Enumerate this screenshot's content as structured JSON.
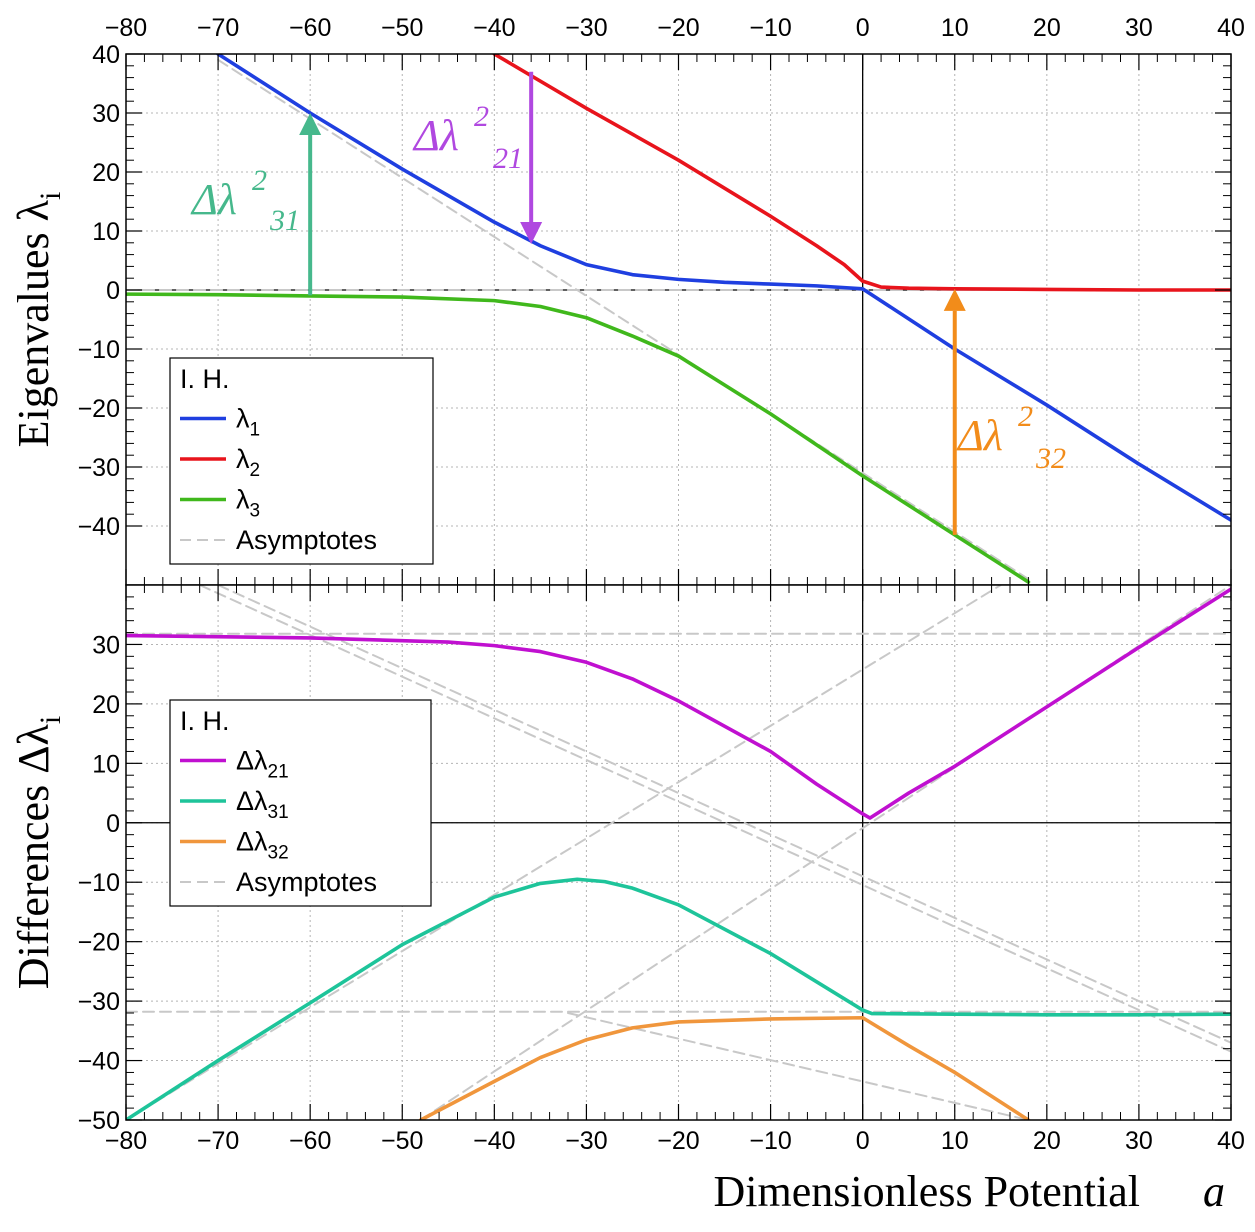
{
  "chart_data": [
    {
      "type": "line",
      "panel": "top",
      "ylabel": "Eigenvalues λ",
      "ylabel_sub": "i",
      "xlim": [
        -80,
        40
      ],
      "ylim": [
        -50,
        40
      ],
      "x_ticks": [
        -80,
        -70,
        -60,
        -50,
        -40,
        -30,
        -20,
        -10,
        0,
        10,
        20,
        30,
        40
      ],
      "y_ticks": [
        -40,
        -30,
        -20,
        -10,
        0,
        10,
        20,
        30,
        40
      ],
      "grid": true,
      "legend_position": "bottom-left",
      "legend": {
        "title": "I. H.",
        "entries": [
          {
            "id": "l1",
            "base": "λ",
            "sub": "1"
          },
          {
            "id": "l2",
            "base": "λ",
            "sub": "2"
          },
          {
            "id": "l3",
            "base": "λ",
            "sub": "3"
          },
          {
            "id": "asym",
            "base": "Asymptotes",
            "sub": ""
          }
        ]
      },
      "series": [
        {
          "id": "l1",
          "color": "#1f3fe0",
          "x": [
            -70,
            -60,
            -50,
            -40,
            -35,
            -30,
            -25,
            -20,
            -15,
            -10,
            -5,
            0,
            10,
            20,
            30,
            40
          ],
          "values": [
            40,
            30,
            20.5,
            11.5,
            7.5,
            4.3,
            2.6,
            1.8,
            1.3,
            1.0,
            0.7,
            0.2,
            -10,
            -19.5,
            -29.5,
            -39
          ]
        },
        {
          "id": "l2",
          "color": "#e8141c",
          "x": [
            -40,
            -30,
            -20,
            -10,
            -5,
            -2,
            0,
            2,
            5,
            10,
            20,
            30,
            40
          ],
          "values": [
            40,
            30.8,
            22,
            12.5,
            7.5,
            4.3,
            1.5,
            0.5,
            0.3,
            0.2,
            0.1,
            0,
            0
          ]
        },
        {
          "id": "l3",
          "color": "#40b81c",
          "x": [
            -80,
            -70,
            -60,
            -50,
            -40,
            -35,
            -30,
            -25,
            -20,
            -10,
            0,
            10,
            18
          ],
          "values": [
            -0.7,
            -0.8,
            -1.0,
            -1.2,
            -1.8,
            -2.8,
            -4.7,
            -7.8,
            -11.2,
            -21,
            -31.5,
            -41.5,
            -49.5
          ]
        },
        {
          "id": "asym",
          "color": "#c8c8c8",
          "dashed": true,
          "x": [
            -70,
            18
          ],
          "values": [
            39,
            -49
          ]
        },
        {
          "id": "asym",
          "color": "#c8c8c8",
          "dashed": true,
          "x": [
            -80,
            40
          ],
          "values": [
            0,
            0
          ]
        }
      ],
      "annotations": [
        {
          "id": "d31",
          "text": "Δλ",
          "sup": "2",
          "sub": "31",
          "color": "#46b88c",
          "arrow_x": -60,
          "arrow_from": -0.9,
          "arrow_to": 30
        },
        {
          "id": "d21",
          "text": "Δλ",
          "sup": "2",
          "sub": "21",
          "color": "#b048e0",
          "arrow_x": -36,
          "arrow_from": 37,
          "arrow_to": 7.8
        },
        {
          "id": "d32",
          "text": "Δλ",
          "sup": "2",
          "sub": "32",
          "color": "#f28c1a",
          "arrow_x": 10,
          "arrow_from": -41.5,
          "arrow_to": 0.2
        }
      ]
    },
    {
      "type": "line",
      "panel": "bottom",
      "xlabel": "Dimensionless Potential",
      "xlabel_var": "a",
      "ylabel": "Differences Δλ",
      "ylabel_sub": "i",
      "xlim": [
        -80,
        40
      ],
      "ylim": [
        -50,
        40
      ],
      "x_ticks": [
        -80,
        -70,
        -60,
        -50,
        -40,
        -30,
        -20,
        -10,
        0,
        10,
        20,
        30,
        40
      ],
      "y_ticks": [
        -50,
        -40,
        -30,
        -20,
        -10,
        0,
        10,
        20,
        30
      ],
      "grid": true,
      "legend_position": "middle-left",
      "legend": {
        "title": "I. H.",
        "entries": [
          {
            "id": "d21",
            "base": "Δλ",
            "sub": "21"
          },
          {
            "id": "d31",
            "base": "Δλ",
            "sub": "31"
          },
          {
            "id": "d32",
            "base": "Δλ",
            "sub": "32"
          },
          {
            "id": "asym",
            "base": "Asymptotes",
            "sub": ""
          }
        ]
      },
      "series": [
        {
          "id": "d21",
          "color": "#c010d0",
          "x": [
            -80,
            -60,
            -45,
            -40,
            -35,
            -30,
            -25,
            -20,
            -10,
            -5,
            0,
            0.8,
            5,
            10,
            20,
            30,
            40
          ],
          "values": [
            31.5,
            31.1,
            30.4,
            29.8,
            28.8,
            27.0,
            24.2,
            20.5,
            12.0,
            6.5,
            1.5,
            0.8,
            5.0,
            9.5,
            19.5,
            29.5,
            39.3
          ]
        },
        {
          "id": "d31",
          "color": "#1ec49a",
          "x": [
            -80,
            -70,
            -60,
            -50,
            -40,
            -35,
            -31,
            -28,
            -25,
            -20,
            -10,
            0,
            1,
            10,
            20,
            30,
            40
          ],
          "values": [
            -50,
            -40,
            -30.3,
            -20.5,
            -12.5,
            -10.2,
            -9.5,
            -9.9,
            -11,
            -13.8,
            -22,
            -31.5,
            -32.1,
            -32.2,
            -32.3,
            -32.3,
            -32.2
          ]
        },
        {
          "id": "d32",
          "color": "#f0963c",
          "x": [
            -48,
            -40,
            -35,
            -30,
            -25,
            -20,
            -10,
            0,
            5,
            10,
            18
          ],
          "values": [
            -50,
            -43.5,
            -39.5,
            -36.5,
            -34.5,
            -33.5,
            -33,
            -32.8,
            -37.5,
            -42,
            -50
          ]
        },
        {
          "id": "asym",
          "color": "#c8c8c8",
          "dashed": true,
          "x": [
            -80,
            40
          ],
          "values": [
            31.8,
            31.8
          ]
        },
        {
          "id": "asym",
          "color": "#c8c8c8",
          "dashed": true,
          "x": [
            -80,
            40
          ],
          "values": [
            -31.8,
            -31.8
          ]
        },
        {
          "id": "asym",
          "color": "#c8c8c8",
          "dashed": true,
          "x": [
            -70,
            40
          ],
          "values": [
            40,
            -37
          ]
        },
        {
          "id": "asym",
          "color": "#c8c8c8",
          "dashed": true,
          "x": [
            -72,
            40
          ],
          "values": [
            40,
            -38.5
          ]
        },
        {
          "id": "asym",
          "color": "#c8c8c8",
          "dashed": true,
          "x": [
            -80,
            15
          ],
          "values": [
            -50,
            40
          ]
        },
        {
          "id": "asym",
          "color": "#c8c8c8",
          "dashed": true,
          "x": [
            -48,
            40
          ],
          "values": [
            -50,
            40
          ]
        },
        {
          "id": "asym",
          "color": "#c8c8c8",
          "dashed": true,
          "x": [
            -32,
            18
          ],
          "values": [
            -32,
            -50
          ]
        }
      ]
    }
  ]
}
